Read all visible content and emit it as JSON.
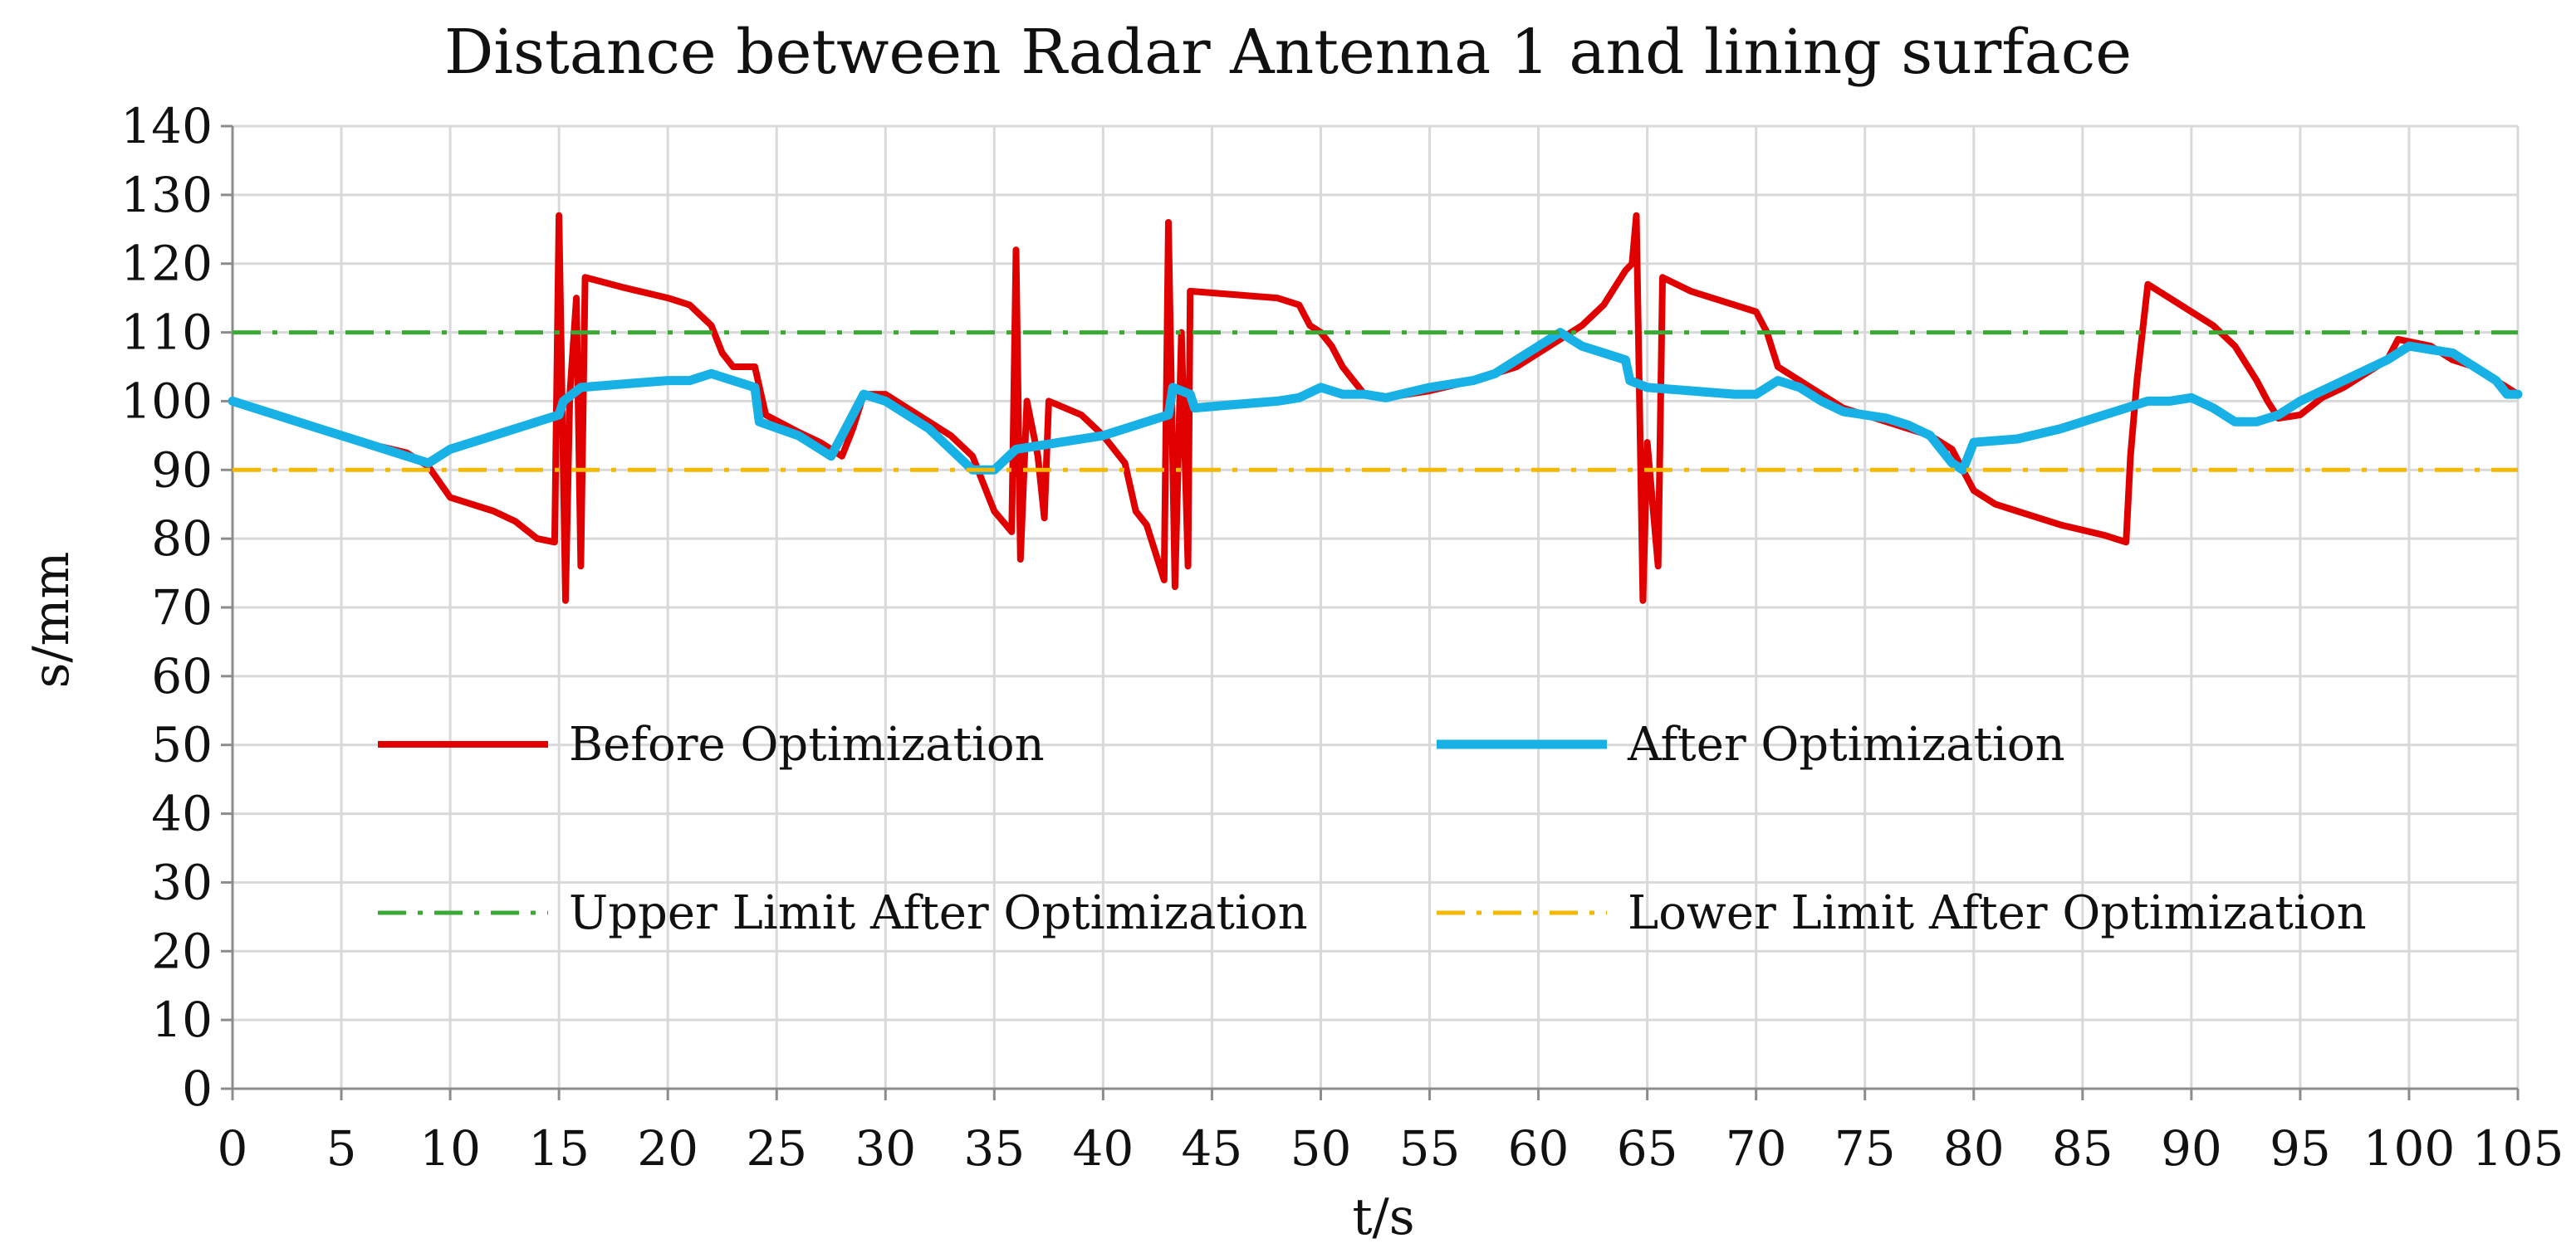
{
  "chart_data": {
    "type": "line",
    "title": "Distance between Radar Antenna 1 and lining surface",
    "xlabel": "t/s",
    "ylabel": "s/mm",
    "xlim": [
      0,
      105
    ],
    "ylim": [
      0,
      140
    ],
    "x_ticks": [
      "0",
      "5",
      "10",
      "15",
      "20",
      "25",
      "30",
      "35",
      "40",
      "45",
      "50",
      "55",
      "60",
      "65",
      "70",
      "75",
      "80",
      "85",
      "90",
      "95",
      "100",
      "105"
    ],
    "y_ticks": [
      "0",
      "10",
      "20",
      "30",
      "40",
      "50",
      "60",
      "70",
      "80",
      "90",
      "100",
      "110",
      "120",
      "130",
      "140"
    ],
    "grid": true,
    "series": [
      {
        "name": "Before Optimization",
        "color": "#e00000",
        "style": "solid",
        "points": [
          [
            0,
            100
          ],
          [
            2,
            98
          ],
          [
            4,
            96
          ],
          [
            6,
            94
          ],
          [
            8,
            92.5
          ],
          [
            9,
            90.5
          ],
          [
            10,
            86
          ],
          [
            11,
            85
          ],
          [
            12,
            84
          ],
          [
            13,
            82.5
          ],
          [
            14,
            80
          ],
          [
            14.8,
            79.5
          ],
          [
            15,
            127
          ],
          [
            15.3,
            71
          ],
          [
            15.5,
            101
          ],
          [
            15.8,
            115
          ],
          [
            16,
            76
          ],
          [
            16.2,
            118
          ],
          [
            18,
            116.5
          ],
          [
            20,
            115
          ],
          [
            21,
            114
          ],
          [
            22,
            111
          ],
          [
            22.5,
            107
          ],
          [
            23,
            105
          ],
          [
            24,
            105
          ],
          [
            24.5,
            98
          ],
          [
            26,
            95.5
          ],
          [
            27,
            94
          ],
          [
            28,
            92
          ],
          [
            28.5,
            96
          ],
          [
            29,
            101
          ],
          [
            30,
            101
          ],
          [
            31,
            99
          ],
          [
            32,
            97
          ],
          [
            33,
            95
          ],
          [
            34,
            92
          ],
          [
            35,
            84
          ],
          [
            35.8,
            81
          ],
          [
            36,
            122
          ],
          [
            36.2,
            77
          ],
          [
            36.5,
            100
          ],
          [
            37,
            92
          ],
          [
            37.3,
            83
          ],
          [
            37.5,
            100
          ],
          [
            39,
            98
          ],
          [
            40,
            95
          ],
          [
            41,
            91
          ],
          [
            41.5,
            84
          ],
          [
            42,
            82
          ],
          [
            42.8,
            74
          ],
          [
            43,
            126
          ],
          [
            43.3,
            73
          ],
          [
            43.6,
            110
          ],
          [
            43.9,
            76
          ],
          [
            44,
            116
          ],
          [
            46,
            115.5
          ],
          [
            48,
            115
          ],
          [
            49,
            114
          ],
          [
            49.5,
            111
          ],
          [
            50,
            110
          ],
          [
            50.5,
            108
          ],
          [
            51,
            105
          ],
          [
            52,
            101
          ],
          [
            53,
            100.5
          ],
          [
            55,
            101.5
          ],
          [
            57,
            103
          ],
          [
            59,
            105
          ],
          [
            61,
            109
          ],
          [
            62,
            111
          ],
          [
            63,
            114
          ],
          [
            64,
            119
          ],
          [
            64.3,
            120
          ],
          [
            64.5,
            127
          ],
          [
            64.8,
            71
          ],
          [
            65,
            94
          ],
          [
            65.5,
            76
          ],
          [
            65.7,
            118
          ],
          [
            67,
            116
          ],
          [
            69,
            114
          ],
          [
            70,
            113
          ],
          [
            70.5,
            110
          ],
          [
            71,
            105
          ],
          [
            72,
            103
          ],
          [
            73,
            101
          ],
          [
            74,
            99
          ],
          [
            76,
            97
          ],
          [
            78,
            95
          ],
          [
            79,
            93
          ],
          [
            80,
            87
          ],
          [
            81,
            85
          ],
          [
            82,
            84
          ],
          [
            83,
            83
          ],
          [
            84,
            82
          ],
          [
            86,
            80.5
          ],
          [
            87,
            79.5
          ],
          [
            87.2,
            92
          ],
          [
            87.5,
            103
          ],
          [
            88,
            117
          ],
          [
            89,
            115
          ],
          [
            90,
            113
          ],
          [
            91,
            111
          ],
          [
            92,
            108
          ],
          [
            93,
            103
          ],
          [
            93.5,
            100
          ],
          [
            94,
            97.5
          ],
          [
            95,
            98
          ],
          [
            96,
            100.5
          ],
          [
            97,
            102
          ],
          [
            98,
            104
          ],
          [
            99,
            106
          ],
          [
            99.5,
            109
          ],
          [
            101,
            108
          ],
          [
            102,
            106
          ],
          [
            103,
            105
          ],
          [
            104,
            103
          ],
          [
            105,
            101
          ]
        ]
      },
      {
        "name": "After Optimization",
        "color": "#17b1e6",
        "style": "solid",
        "points": [
          [
            0,
            100
          ],
          [
            2,
            98
          ],
          [
            4,
            96
          ],
          [
            6,
            94
          ],
          [
            8,
            92
          ],
          [
            9,
            91
          ],
          [
            10,
            93
          ],
          [
            12,
            95
          ],
          [
            14,
            97
          ],
          [
            15,
            98
          ],
          [
            15.2,
            100
          ],
          [
            16,
            102
          ],
          [
            18,
            102.5
          ],
          [
            20,
            103
          ],
          [
            21,
            103
          ],
          [
            22,
            104
          ],
          [
            23,
            103
          ],
          [
            24,
            102
          ],
          [
            24.2,
            97
          ],
          [
            26,
            95
          ],
          [
            27,
            93
          ],
          [
            27.5,
            92
          ],
          [
            28,
            95
          ],
          [
            29,
            101
          ],
          [
            30,
            100
          ],
          [
            31,
            98
          ],
          [
            32,
            96
          ],
          [
            33,
            93
          ],
          [
            34,
            90
          ],
          [
            35,
            90
          ],
          [
            36,
            93
          ],
          [
            38,
            94
          ],
          [
            40,
            95
          ],
          [
            42,
            97
          ],
          [
            43,
            98
          ],
          [
            43.2,
            102
          ],
          [
            44,
            101
          ],
          [
            44.2,
            99
          ],
          [
            46,
            99.5
          ],
          [
            48,
            100
          ],
          [
            49,
            100.5
          ],
          [
            50,
            102
          ],
          [
            51,
            101
          ],
          [
            52,
            101
          ],
          [
            53,
            100.5
          ],
          [
            55,
            102
          ],
          [
            57,
            103
          ],
          [
            58,
            104
          ],
          [
            59,
            106
          ],
          [
            60,
            108
          ],
          [
            61,
            110
          ],
          [
            62,
            108
          ],
          [
            63,
            107
          ],
          [
            64,
            106
          ],
          [
            64.2,
            103
          ],
          [
            65,
            102
          ],
          [
            67,
            101.5
          ],
          [
            69,
            101
          ],
          [
            70,
            101
          ],
          [
            71,
            103
          ],
          [
            72,
            102
          ],
          [
            73,
            100
          ],
          [
            74,
            98.5
          ],
          [
            75,
            98
          ],
          [
            76,
            97.5
          ],
          [
            77,
            96.5
          ],
          [
            78,
            95
          ],
          [
            79,
            91
          ],
          [
            79.5,
            90
          ],
          [
            80,
            94
          ],
          [
            82,
            94.5
          ],
          [
            84,
            96
          ],
          [
            86,
            98
          ],
          [
            87,
            99
          ],
          [
            88,
            100
          ],
          [
            89,
            100
          ],
          [
            90,
            100.5
          ],
          [
            91,
            99
          ],
          [
            92,
            97
          ],
          [
            93,
            97
          ],
          [
            94,
            98
          ],
          [
            95,
            100
          ],
          [
            97,
            103
          ],
          [
            99,
            106
          ],
          [
            100,
            108
          ],
          [
            101,
            107.5
          ],
          [
            102,
            107
          ],
          [
            103,
            105
          ],
          [
            104,
            103
          ],
          [
            104.5,
            101
          ],
          [
            105,
            101
          ]
        ]
      },
      {
        "name": "Upper Limit After Optimization",
        "color": "#3aa935",
        "style": "dash-dot",
        "points": [
          [
            0,
            110
          ],
          [
            105,
            110
          ]
        ]
      },
      {
        "name": "Lower Limit After Optimization",
        "color": "#f5b800",
        "style": "dash-dot",
        "points": [
          [
            0,
            90
          ],
          [
            105,
            90
          ]
        ]
      }
    ],
    "legend_placement": "inside, center, two columns"
  }
}
